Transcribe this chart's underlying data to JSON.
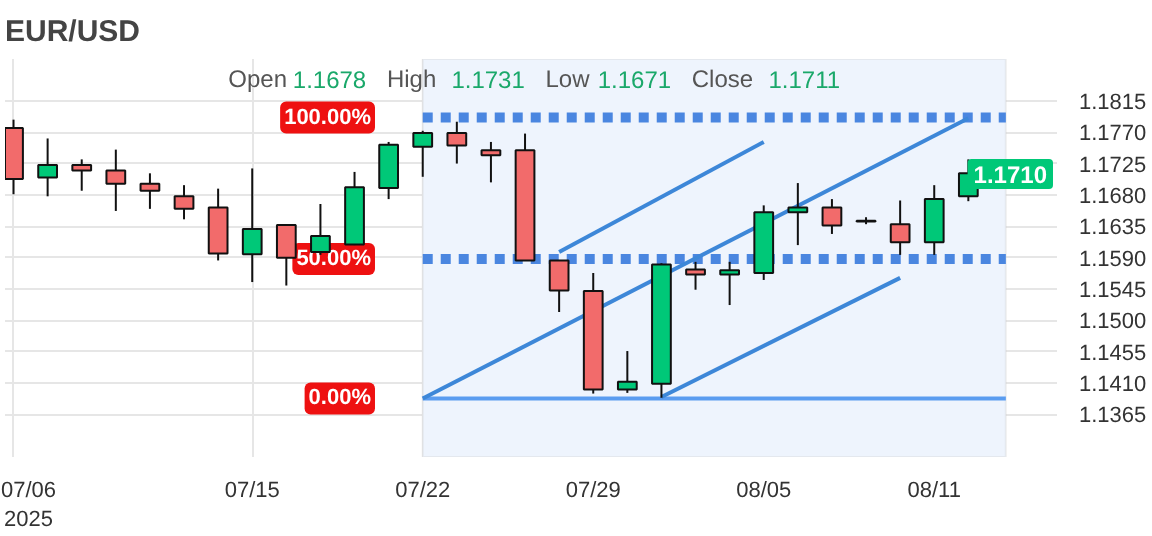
{
  "chart_data": {
    "type": "candlestick",
    "title": "EUR/USD",
    "annotations": [
      "Open",
      "1.1678",
      "High",
      "1.1731",
      "Low",
      "1.1671",
      "Close",
      "1.1711",
      {
        "text": "1.1710",
        "y": 1.171
      },
      "100.00%",
      "50.00%",
      "0.00%"
    ],
    "categories": [
      "07/06\n2025",
      null,
      null,
      null,
      null,
      null,
      null,
      "07/15",
      null,
      null,
      null,
      null,
      "07/22",
      null,
      null,
      null,
      null,
      "07/29",
      null,
      null,
      null,
      null,
      "08/05",
      null,
      null,
      null,
      null,
      "08/11",
      null
    ],
    "ohlc": [
      [
        1.1776,
        1.1788,
        1.1681,
        1.1703
      ],
      [
        1.1705,
        1.1761,
        1.1678,
        1.1723
      ],
      [
        1.1723,
        1.1731,
        1.1686,
        1.1715
      ],
      [
        1.1715,
        1.1745,
        1.1657,
        1.1696
      ],
      [
        1.1696,
        1.1711,
        1.166,
        1.1686
      ],
      [
        1.1678,
        1.1694,
        1.1645,
        1.166
      ],
      [
        1.1662,
        1.1689,
        1.1586,
        1.1596
      ],
      [
        1.1595,
        1.1718,
        1.1555,
        1.1631
      ],
      [
        1.1637,
        1.1637,
        1.155,
        1.159
      ],
      [
        1.1598,
        1.1667,
        1.1594,
        1.1621
      ],
      [
        1.1609,
        1.1713,
        1.1608,
        1.1691
      ],
      [
        1.169,
        1.1756,
        1.1674,
        1.1752
      ],
      [
        1.1749,
        1.1772,
        1.1706,
        1.1769
      ],
      [
        1.1769,
        1.1785,
        1.1725,
        1.1751
      ],
      [
        1.1744,
        1.1756,
        1.1698,
        1.1737
      ],
      [
        1.1744,
        1.1768,
        1.1586,
        1.1586
      ],
      [
        1.1586,
        1.1586,
        1.1512,
        1.1543
      ],
      [
        1.1542,
        1.1568,
        1.1395,
        1.1401
      ],
      [
        1.1401,
        1.1456,
        1.1396,
        1.1412
      ],
      [
        1.1409,
        1.1582,
        1.1389,
        1.158
      ],
      [
        1.1573,
        1.1584,
        1.1544,
        1.1566
      ],
      [
        1.1566,
        1.1584,
        1.1522,
        1.1572
      ],
      [
        1.1568,
        1.1665,
        1.1558,
        1.1655
      ],
      [
        1.1655,
        1.1697,
        1.1608,
        1.1662
      ],
      [
        1.1662,
        1.1674,
        1.1624,
        1.1636
      ],
      [
        1.1643,
        1.1648,
        1.1638,
        1.1642
      ],
      [
        1.1638,
        1.1672,
        1.1594,
        1.1612
      ],
      [
        1.1612,
        1.1694,
        1.1594,
        1.1674
      ],
      [
        1.1678,
        1.1731,
        1.1671,
        1.1711
      ]
    ],
    "colors": [
      "#f26b6b",
      "#00c878",
      "#f26b6b",
      "#f26b6b",
      "#f26b6b",
      "#f26b6b",
      "#f26b6b",
      "#00c878",
      "#f26b6b",
      "#00c878",
      "#00c878",
      "#00c878",
      "#00c878",
      "#f26b6b",
      "#f26b6b",
      "#f26b6b",
      "#f26b6b",
      "#f26b6b",
      "#00c878",
      "#00c878",
      "#f26b6b",
      "#00c878",
      "#00c878",
      "#00c878",
      "#f26b6b",
      "#f26b6b",
      "#f26b6b",
      "#00c878",
      "#00c878"
    ],
    "series": [
      {
        "type": "line",
        "values": [
          null,
          null,
          null,
          null,
          null,
          null,
          null,
          null,
          null,
          null,
          null,
          null,
          1.1388,
          null,
          null,
          null,
          null,
          null,
          null,
          null,
          null,
          null,
          null,
          null,
          null,
          null,
          null,
          null,
          1.179
        ],
        "color": "#3d87d8"
      },
      {
        "type": "line",
        "values": [
          null,
          null,
          null,
          null,
          null,
          null,
          null,
          null,
          null,
          null,
          null,
          null,
          null,
          null,
          null,
          null,
          1.1598,
          null,
          null,
          null,
          null,
          null,
          1.1756,
          null,
          null,
          null,
          null,
          null,
          null
        ],
        "color": "#3d87d8"
      },
      {
        "type": "line",
        "values": [
          null,
          null,
          null,
          null,
          null,
          null,
          null,
          null,
          null,
          null,
          null,
          null,
          null,
          null,
          null,
          null,
          null,
          null,
          null,
          1.139,
          null,
          null,
          null,
          null,
          null,
          null,
          1.1561,
          null,
          null
        ],
        "color": "#3d87d8"
      }
    ],
    "ylim": [
      1.1304,
      1.1875
    ],
    "yticks": [
      {
        "value": 1.1365,
        "label": "1.1365"
      },
      {
        "value": 1.141,
        "label": "1.1410"
      },
      {
        "value": 1.1455,
        "label": "1.1455"
      },
      {
        "value": 1.15,
        "label": "1.1500"
      },
      {
        "value": 1.1545,
        "label": "1.1545"
      },
      {
        "value": 1.159,
        "label": "1.1590"
      },
      {
        "value": 1.1635,
        "label": "1.1635"
      },
      {
        "value": 1.168,
        "label": "1.1680"
      },
      {
        "value": 1.1725,
        "label": "1.1725"
      },
      {
        "value": 1.177,
        "label": "1.1770"
      },
      {
        "value": 1.1815,
        "label": "1.1815"
      }
    ],
    "grid": true,
    "ref_lines": [
      {
        "axis": "y",
        "value": 1.1791,
        "color": "#4a86e0",
        "line_style": "dotted"
      },
      {
        "axis": "y",
        "value": 1.1588,
        "color": "#4a86e0",
        "line_style": "dotted"
      },
      {
        "axis": "y",
        "value": 1.1388,
        "color": "#5a9cf0",
        "line_style": "solid"
      }
    ]
  }
}
